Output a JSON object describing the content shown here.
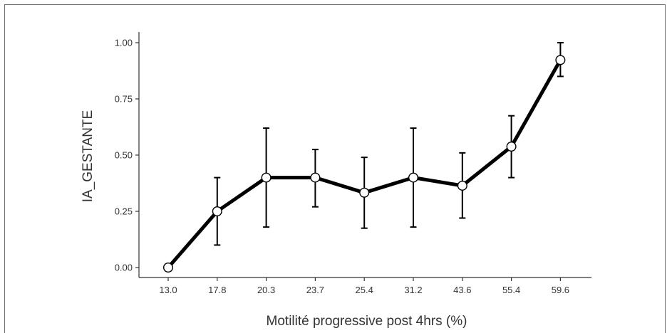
{
  "chart_data": {
    "type": "line",
    "title": "",
    "xlabel": "Motilité progressive post 4hrs (%)",
    "ylabel": "IA_GESTANTE",
    "categories": [
      "13.0",
      "17.8",
      "20.3",
      "23.7",
      "25.4",
      "31.2",
      "43.6",
      "55.4",
      "59.6"
    ],
    "series": [
      {
        "values": [
          0.0,
          0.25,
          0.4,
          0.4,
          0.333,
          0.4,
          0.364,
          0.538,
          0.923
        ],
        "error_lower": [
          0.0,
          0.1,
          0.18,
          0.27,
          0.175,
          0.18,
          0.22,
          0.4,
          0.85
        ],
        "error_upper": [
          0.0,
          0.4,
          0.62,
          0.525,
          0.49,
          0.62,
          0.51,
          0.675,
          1.0
        ]
      }
    ],
    "yticks": [
      "0.00",
      "0.25",
      "0.50",
      "0.75",
      "1.00"
    ],
    "ylim": [
      0,
      1
    ],
    "grid": false,
    "colors": {
      "line": "#000000",
      "marker_fill": "#ffffff",
      "axis": "#333333"
    }
  }
}
